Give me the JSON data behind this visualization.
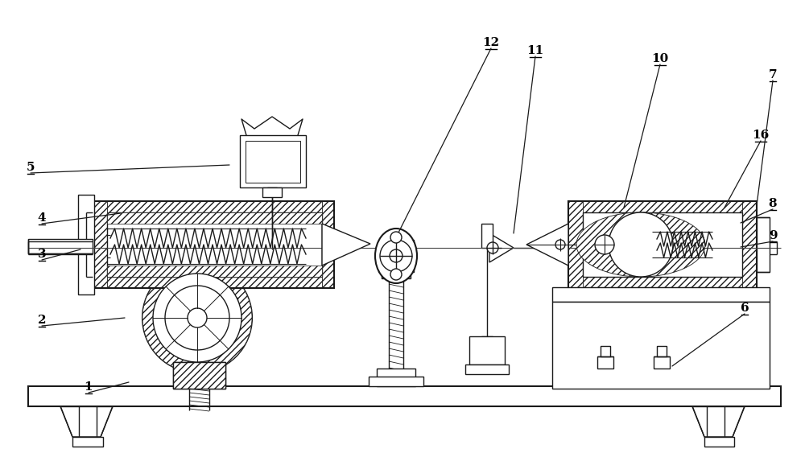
{
  "bg_color": "#ffffff",
  "line_color": "#1a1a1a",
  "lw": 1.0,
  "lw2": 1.5,
  "figsize": [
    10.0,
    5.63
  ],
  "dpi": 100,
  "labels": [
    [
      "1",
      110,
      488,
      160,
      475
    ],
    [
      "2",
      52,
      405,
      155,
      395
    ],
    [
      "3",
      52,
      323,
      100,
      310
    ],
    [
      "4",
      52,
      278,
      150,
      265
    ],
    [
      "5",
      38,
      215,
      285,
      205
    ],
    [
      "6",
      925,
      390,
      835,
      455
    ],
    [
      "7",
      960,
      100,
      940,
      255
    ],
    [
      "8",
      960,
      260,
      920,
      277
    ],
    [
      "9",
      960,
      300,
      920,
      307
    ],
    [
      "10",
      820,
      80,
      775,
      258
    ],
    [
      "11",
      665,
      70,
      638,
      290
    ],
    [
      "12",
      610,
      60,
      492,
      295
    ],
    [
      "16",
      945,
      175,
      900,
      258
    ]
  ]
}
